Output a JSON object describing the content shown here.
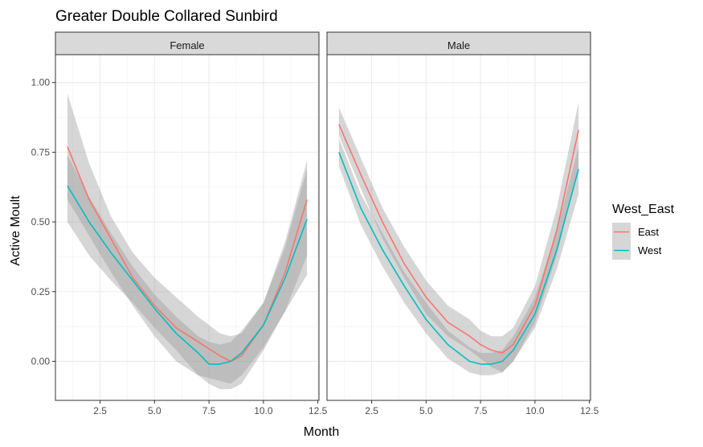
{
  "chart_data": {
    "type": "line",
    "title": "Greater Double Collared Sunbird",
    "xlabel": "Month",
    "ylabel": "Active Moult",
    "xlim": [
      0.45,
      12.55
    ],
    "ylim": [
      -0.14,
      1.1
    ],
    "x_ticks": [
      2.5,
      5.0,
      7.5,
      10.0,
      12.5
    ],
    "x_tick_labels": [
      "2.5",
      "5.0",
      "7.5",
      "10.0",
      "12.5"
    ],
    "y_ticks": [
      0.0,
      0.25,
      0.5,
      0.75,
      1.0
    ],
    "y_tick_labels": [
      "0.00",
      "0.25",
      "0.50",
      "0.75",
      "1.00"
    ],
    "grid": true,
    "legend": {
      "title": "West_East",
      "placement": "right",
      "entries": [
        {
          "name": "East",
          "color": "#F8766D"
        },
        {
          "name": "West",
          "color": "#00BFC4"
        }
      ]
    },
    "ribbon_color": "#999999",
    "panels": [
      {
        "strip": "Female",
        "series": [
          {
            "name": "East",
            "color": "#F8766D",
            "x": [
              1,
              2,
              3,
              4,
              5,
              6,
              7,
              8,
              8.5,
              9,
              10,
              11,
              12
            ],
            "y": [
              0.77,
              0.58,
              0.44,
              0.3,
              0.2,
              0.12,
              0.07,
              0.02,
              0.0,
              0.02,
              0.13,
              0.32,
              0.58
            ],
            "lower": [
              0.58,
              0.45,
              0.32,
              0.2,
              0.09,
              0.0,
              -0.05,
              -0.07,
              -0.08,
              -0.05,
              0.05,
              0.18,
              0.38
            ],
            "upper": [
              0.96,
              0.71,
              0.52,
              0.39,
              0.3,
              0.23,
              0.16,
              0.1,
              0.09,
              0.1,
              0.21,
              0.43,
              0.72
            ]
          },
          {
            "name": "West",
            "color": "#00BFC4",
            "x": [
              1,
              2,
              3,
              4,
              5,
              6,
              7,
              7.5,
              8,
              8.5,
              9,
              10,
              11,
              12
            ],
            "y": [
              0.63,
              0.5,
              0.39,
              0.29,
              0.19,
              0.1,
              0.03,
              -0.01,
              -0.01,
              0.0,
              0.03,
              0.13,
              0.3,
              0.51
            ],
            "lower": [
              0.5,
              0.38,
              0.29,
              0.21,
              0.12,
              0.04,
              -0.05,
              -0.08,
              -0.1,
              -0.1,
              -0.08,
              0.04,
              0.18,
              0.31
            ],
            "upper": [
              0.74,
              0.59,
              0.46,
              0.34,
              0.24,
              0.16,
              0.09,
              0.07,
              0.06,
              0.07,
              0.11,
              0.21,
              0.41,
              0.69
            ]
          }
        ]
      },
      {
        "strip": "Male",
        "series": [
          {
            "name": "East",
            "color": "#F8766D",
            "x": [
              1,
              2,
              3,
              4,
              5,
              6,
              7,
              7.5,
              8,
              8.5,
              9,
              10,
              11,
              12
            ],
            "y": [
              0.85,
              0.67,
              0.5,
              0.35,
              0.23,
              0.14,
              0.09,
              0.06,
              0.04,
              0.03,
              0.06,
              0.2,
              0.47,
              0.83
            ],
            "lower": [
              0.81,
              0.62,
              0.44,
              0.3,
              0.17,
              0.09,
              0.04,
              0.01,
              -0.02,
              -0.04,
              0.0,
              0.14,
              0.38,
              0.7
            ],
            "upper": [
              0.91,
              0.73,
              0.55,
              0.41,
              0.29,
              0.2,
              0.15,
              0.11,
              0.09,
              0.09,
              0.12,
              0.27,
              0.55,
              0.93
            ]
          },
          {
            "name": "West",
            "color": "#00BFC4",
            "x": [
              1,
              2,
              3,
              4,
              5,
              6,
              7,
              7.5,
              8,
              8.5,
              9,
              10,
              11,
              12
            ],
            "y": [
              0.75,
              0.55,
              0.4,
              0.27,
              0.15,
              0.06,
              0.0,
              -0.01,
              -0.01,
              0.0,
              0.04,
              0.17,
              0.4,
              0.69
            ],
            "lower": [
              0.7,
              0.49,
              0.34,
              0.21,
              0.1,
              0.01,
              -0.04,
              -0.05,
              -0.05,
              -0.04,
              0.0,
              0.12,
              0.33,
              0.6
            ],
            "upper": [
              0.8,
              0.6,
              0.46,
              0.32,
              0.21,
              0.11,
              0.05,
              0.03,
              0.03,
              0.04,
              0.09,
              0.23,
              0.47,
              0.77
            ]
          }
        ]
      }
    ]
  }
}
